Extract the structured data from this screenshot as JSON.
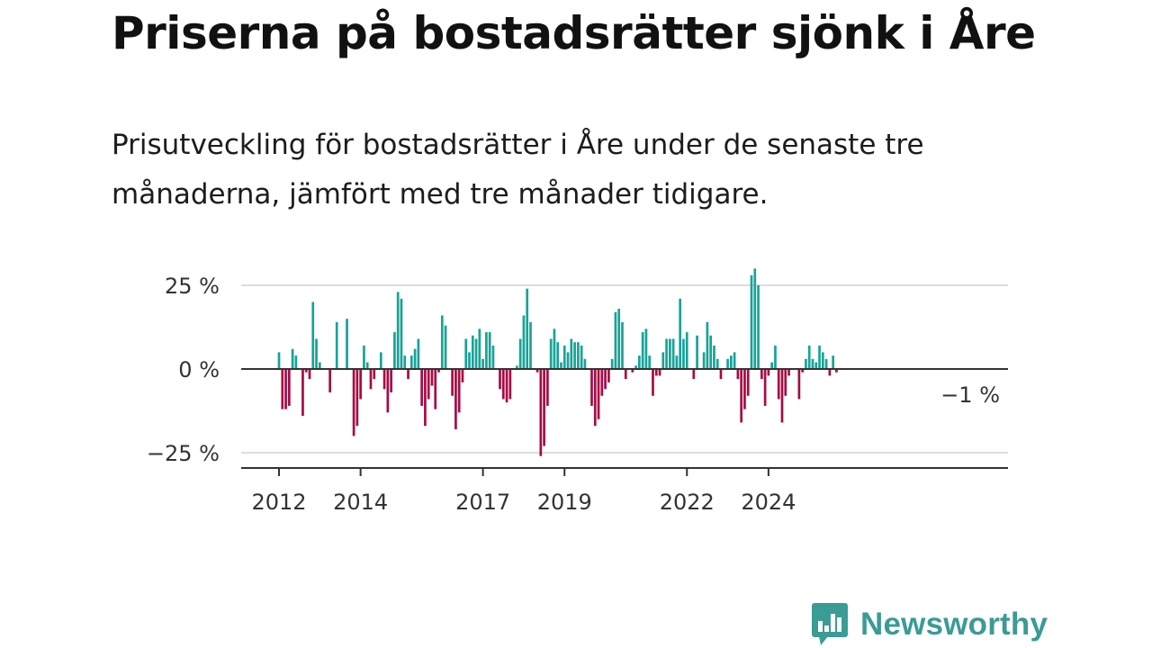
{
  "header": {
    "title": "Priserna på bostadsrätter sjönk i Åre",
    "subtitle": "Prisutveckling för bostadsrätter i Åre under de senaste tre månaderna, jämfört med tre månader tidigare."
  },
  "branding": {
    "name": "Newsworthy",
    "color": "#3b9b95",
    "icon": "bar-chart-speech-bubble-icon"
  },
  "colors": {
    "positive": "#17a398",
    "negative": "#a50c45",
    "grid": "#dddddd",
    "axis": "#333333"
  },
  "chart_data": {
    "type": "bar",
    "title": "Priserna på bostadsrätter sjönk i Åre",
    "subtitle": "Prisutveckling för bostadsrätter i Åre under de senaste tre månaderna, jämfört med tre månader tidigare.",
    "xlabel": "",
    "ylabel": "",
    "unit": "%",
    "x_start": "2012-01",
    "frequency": "monthly",
    "ylim": [
      -28,
      29
    ],
    "yticks": [
      25,
      0,
      -25
    ],
    "ytick_labels": [
      "25 %",
      "0 %",
      "−25 %"
    ],
    "xticks": [
      2012,
      2014,
      2017,
      2019,
      2022,
      2024
    ],
    "xtick_labels": [
      "2012",
      "2014",
      "2017",
      "2019",
      "2022",
      "2024"
    ],
    "grid": true,
    "last_value_label": "−1 %",
    "values": [
      5,
      -12,
      -12,
      -11,
      6,
      4,
      0,
      -14,
      -1,
      -3,
      20,
      9,
      2,
      0,
      0,
      -7,
      0,
      14,
      0,
      0,
      15,
      0,
      -20,
      -17,
      -9,
      7,
      2,
      -6,
      -3,
      0,
      5,
      -6,
      -13,
      -7,
      11,
      23,
      21,
      4,
      -3,
      4,
      6,
      9,
      -11,
      -17,
      -9,
      -5,
      -12,
      -1,
      16,
      13,
      0,
      -8,
      -18,
      -13,
      -4,
      9,
      5,
      10,
      9,
      12,
      3,
      11,
      11,
      7,
      0,
      -6,
      -9,
      -10,
      -9,
      0,
      1,
      9,
      16,
      24,
      14,
      0,
      -1,
      -26,
      -23,
      -11,
      9,
      12,
      8,
      2,
      7,
      5,
      9,
      8,
      8,
      7,
      3,
      0,
      -11,
      -17,
      -15,
      -8,
      -6,
      -4,
      3,
      17,
      18,
      14,
      -3,
      0,
      -1,
      1,
      4,
      11,
      12,
      4,
      -8,
      -2,
      -2,
      5,
      9,
      9,
      9,
      4,
      21,
      9,
      11,
      0,
      -3,
      10,
      0,
      5,
      14,
      10,
      7,
      3,
      -3,
      0,
      3,
      4,
      5,
      -3,
      -16,
      -12,
      -8,
      28,
      30,
      25,
      -3,
      -11,
      -2,
      2,
      7,
      -9,
      -16,
      -8,
      -2,
      0,
      0,
      -9,
      -1,
      3,
      7,
      3,
      2,
      7,
      5,
      3,
      -2,
      4,
      -1
    ]
  }
}
